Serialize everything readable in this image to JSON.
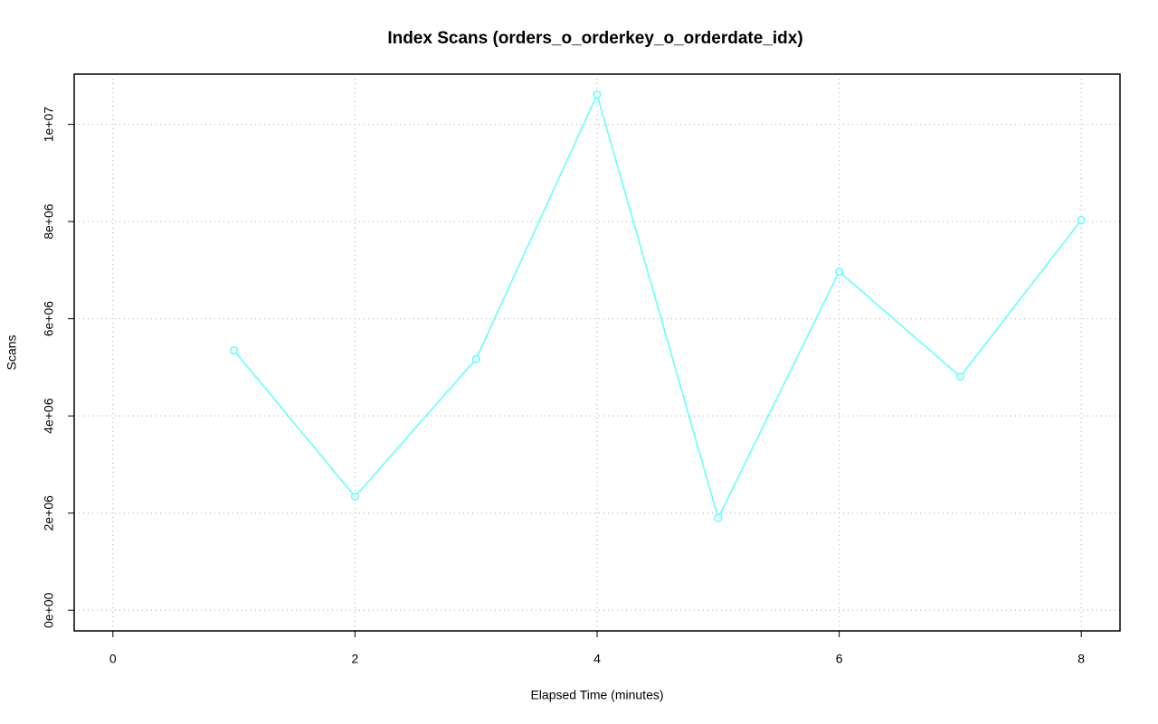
{
  "chart_data": {
    "type": "line",
    "title": "Index Scans (orders_o_orderkey_o_orderdate_idx)",
    "xlabel": "Elapsed Time (minutes)",
    "ylabel": "Scans",
    "x": [
      1,
      2,
      3,
      4,
      5,
      6,
      7,
      8
    ],
    "series": [
      {
        "color": "#66ffff",
        "values": [
          5350000,
          2340000,
          5170000,
          10610000,
          1900000,
          6970000,
          4810000,
          8030000
        ]
      }
    ],
    "xlim": [
      -0.32,
      8.32
    ],
    "xticks": [
      0,
      2,
      4,
      6,
      8
    ],
    "ylim": [
      -424000,
      11034000
    ],
    "yticks": [
      {
        "value": 0,
        "label": "0e+00"
      },
      {
        "value": 2000000,
        "label": "2e+06"
      },
      {
        "value": 4000000,
        "label": "4e+06"
      },
      {
        "value": 6000000,
        "label": "6e+06"
      },
      {
        "value": 8000000,
        "label": "8e+06"
      },
      {
        "value": 10000000,
        "label": "1e+07"
      }
    ],
    "grid": true
  }
}
